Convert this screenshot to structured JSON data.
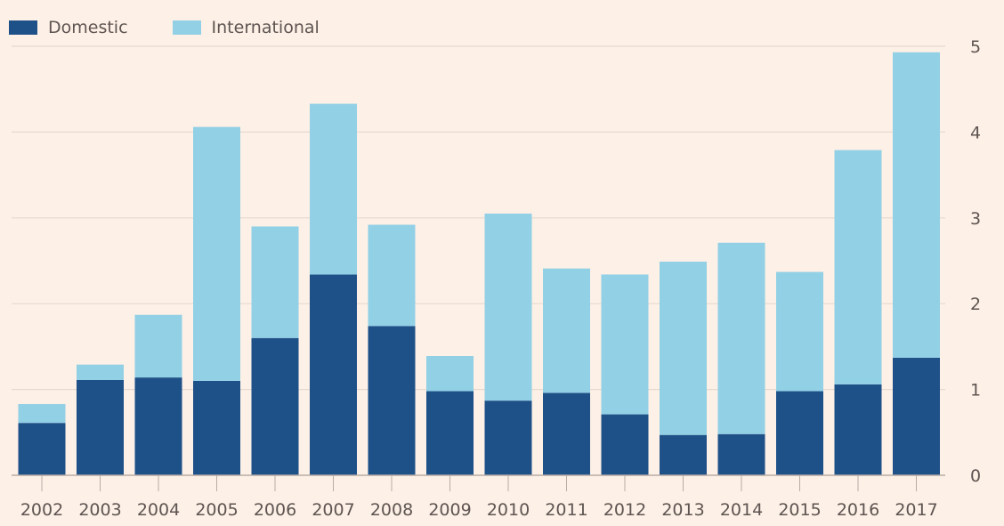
{
  "chart_data": {
    "type": "bar",
    "stacked": true,
    "categories": [
      "2002",
      "2003",
      "2004",
      "2005",
      "2006",
      "2007",
      "2008",
      "2009",
      "2010",
      "2011",
      "2012",
      "2013",
      "2014",
      "2015",
      "2016",
      "2017"
    ],
    "series": [
      {
        "name": "Domestic",
        "color": "#1f5189",
        "values": [
          0.61,
          1.11,
          1.14,
          1.1,
          1.6,
          2.34,
          1.74,
          0.98,
          0.87,
          0.96,
          0.71,
          0.47,
          0.48,
          0.98,
          1.06,
          1.37
        ]
      },
      {
        "name": "International",
        "color": "#92d0e6",
        "values": [
          0.22,
          0.18,
          0.73,
          2.96,
          1.3,
          1.99,
          1.18,
          0.41,
          2.18,
          1.45,
          1.63,
          2.02,
          2.23,
          1.39,
          2.73,
          3.56
        ]
      }
    ],
    "ylim": [
      0,
      5
    ],
    "yticks": [
      "0",
      "1",
      "2",
      "3",
      "4",
      "5"
    ],
    "yaxis_side": "right",
    "grid": true,
    "legend": "top-left"
  }
}
